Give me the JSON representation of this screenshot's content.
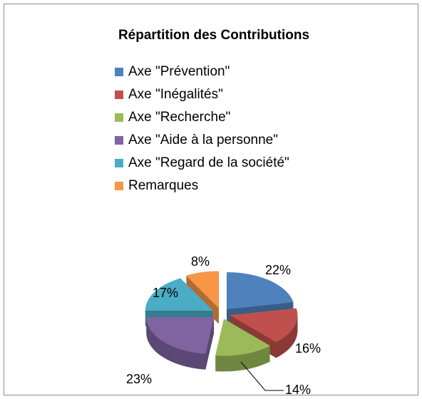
{
  "chart_data": {
    "type": "pie",
    "title": "Répartition des Contributions",
    "categories": [
      "Axe \"Prévention\"",
      "Axe \"Inégalités\"",
      "Axe \"Recherche\"",
      "Axe \"Aide à la personne\"",
      "Axe \"Regard de la société\"",
      "Remarques"
    ],
    "values": [
      22,
      16,
      14,
      23,
      17,
      8
    ],
    "value_labels": [
      "22%",
      "16%",
      "14%",
      "23%",
      "17%",
      "8%"
    ],
    "colors": [
      "#4f81bd",
      "#c0504d",
      "#9bbb59",
      "#8064a2",
      "#4bacc6",
      "#f79646"
    ],
    "legend": "top"
  }
}
